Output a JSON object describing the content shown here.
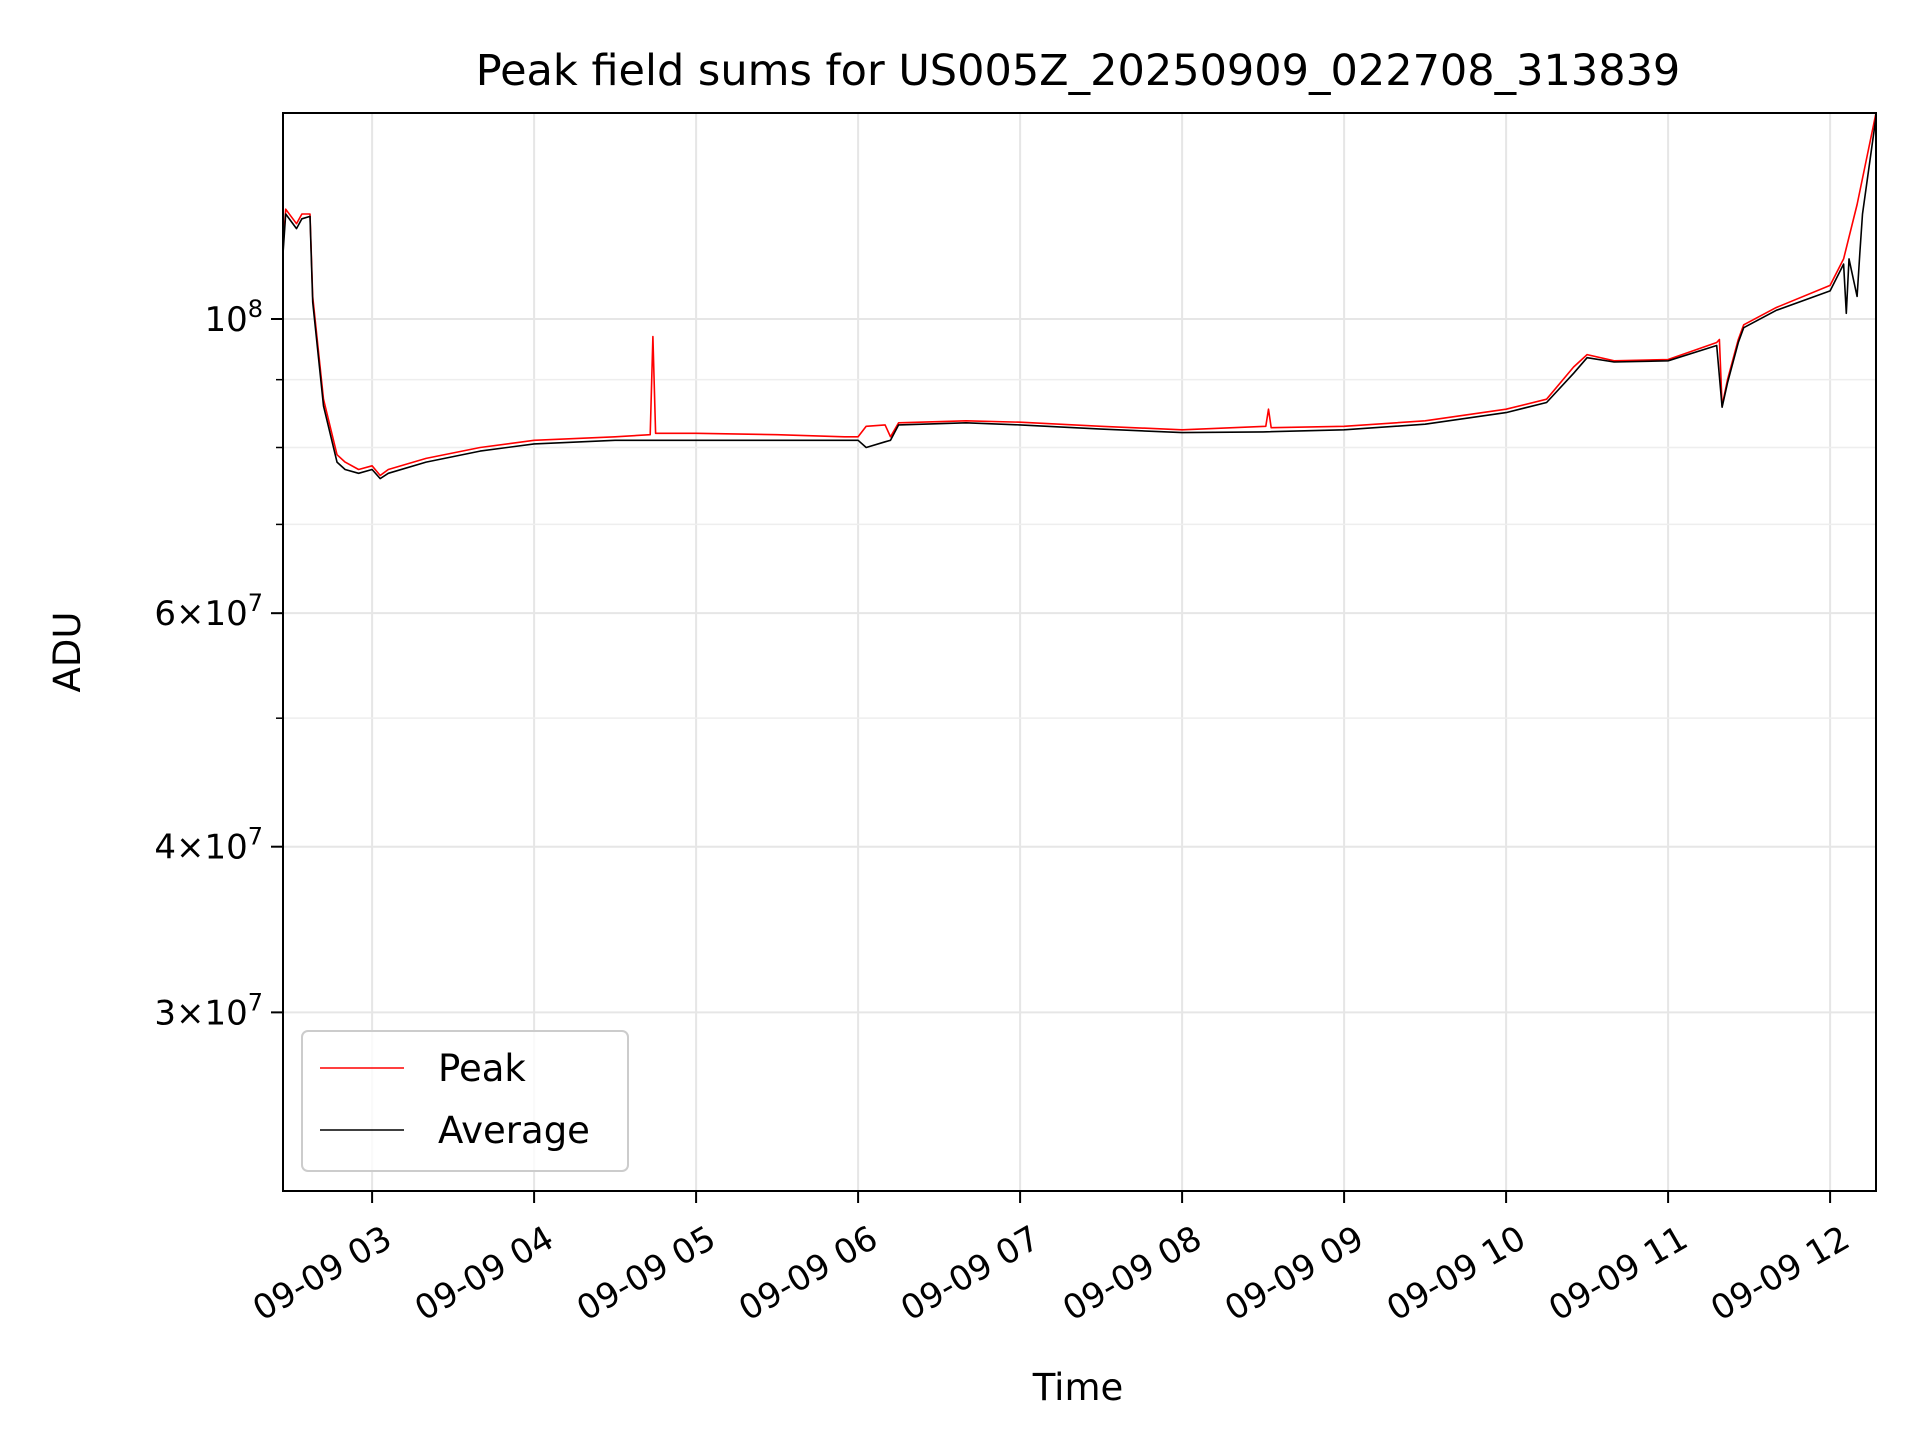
{
  "chart_data": {
    "type": "line",
    "title": "Peak field sums for US005Z_20250909_022708_313839",
    "xlabel": "Time",
    "ylabel": "ADU",
    "y_scale": "log",
    "grid": true,
    "legend_position": "lower-left",
    "xlim": [
      "2025-09-09 02:27",
      "2025-09-09 12:17"
    ],
    "ylim": [
      22000000,
      143000000
    ],
    "x_ticks": [
      {
        "time": "2025-09-09 03:00",
        "label": "09-09 03"
      },
      {
        "time": "2025-09-09 04:00",
        "label": "09-09 04"
      },
      {
        "time": "2025-09-09 05:00",
        "label": "09-09 05"
      },
      {
        "time": "2025-09-09 06:00",
        "label": "09-09 06"
      },
      {
        "time": "2025-09-09 07:00",
        "label": "09-09 07"
      },
      {
        "time": "2025-09-09 08:00",
        "label": "09-09 08"
      },
      {
        "time": "2025-09-09 09:00",
        "label": "09-09 09"
      },
      {
        "time": "2025-09-09 10:00",
        "label": "09-09 10"
      },
      {
        "time": "2025-09-09 11:00",
        "label": "09-09 11"
      },
      {
        "time": "2025-09-09 12:00",
        "label": "09-09 12"
      }
    ],
    "y_major_ticks": [
      {
        "value": 30000000,
        "mantissa": "3",
        "exponent": "7"
      },
      {
        "value": 40000000,
        "mantissa": "4",
        "exponent": "7"
      },
      {
        "value": 60000000,
        "mantissa": "6",
        "exponent": "7"
      },
      {
        "value": 100000000,
        "mantissa": "",
        "exponent": "8"
      }
    ],
    "y_minor_ticks": [
      50000000,
      70000000,
      80000000,
      90000000
    ],
    "tick_base": "10",
    "times_sign": "×",
    "series": [
      {
        "name": "Peak",
        "color": "#ff0000",
        "x": [
          "2025-09-09 02:27",
          "2025-09-09 02:28",
          "2025-09-09 02:32",
          "2025-09-09 02:34",
          "2025-09-09 02:37",
          "2025-09-09 02:38",
          "2025-09-09 02:42",
          "2025-09-09 02:47",
          "2025-09-09 02:50",
          "2025-09-09 02:55",
          "2025-09-09 03:00",
          "2025-09-09 03:03",
          "2025-09-09 03:06",
          "2025-09-09 03:20",
          "2025-09-09 03:40",
          "2025-09-09 04:00",
          "2025-09-09 04:30",
          "2025-09-09 04:43",
          "2025-09-09 04:44",
          "2025-09-09 04:45",
          "2025-09-09 05:00",
          "2025-09-09 05:30",
          "2025-09-09 05:55",
          "2025-09-09 06:00",
          "2025-09-09 06:03",
          "2025-09-09 06:10",
          "2025-09-09 06:12",
          "2025-09-09 06:15",
          "2025-09-09 06:40",
          "2025-09-09 07:00",
          "2025-09-09 07:30",
          "2025-09-09 08:00",
          "2025-09-09 08:31",
          "2025-09-09 08:32",
          "2025-09-09 08:33",
          "2025-09-09 09:00",
          "2025-09-09 09:30",
          "2025-09-09 10:00",
          "2025-09-09 10:15",
          "2025-09-09 10:25",
          "2025-09-09 10:30",
          "2025-09-09 10:40",
          "2025-09-09 11:00",
          "2025-09-09 11:18",
          "2025-09-09 11:19",
          "2025-09-09 11:20",
          "2025-09-09 11:22",
          "2025-09-09 11:26",
          "2025-09-09 11:28",
          "2025-09-09 11:40",
          "2025-09-09 12:00",
          "2025-09-09 12:05",
          "2025-09-09 12:10",
          "2025-09-09 12:17"
        ],
        "values": [
          113000000,
          121000000,
          118000000,
          120000000,
          120000000,
          104000000,
          87000000,
          79000000,
          78000000,
          77000000,
          77500000,
          76200000,
          77000000,
          78500000,
          80000000,
          81000000,
          81500000,
          81800000,
          97000000,
          82000000,
          82000000,
          81800000,
          81500000,
          81500000,
          83000000,
          83200000,
          81500000,
          83500000,
          83800000,
          83600000,
          83000000,
          82500000,
          83000000,
          85500000,
          82800000,
          83000000,
          83800000,
          85500000,
          87000000,
          92000000,
          94000000,
          93000000,
          93200000,
          96000000,
          96500000,
          86000000,
          90000000,
          96500000,
          99000000,
          102000000,
          106000000,
          111000000,
          122000000,
          143000000
        ]
      },
      {
        "name": "Average",
        "color": "#000000",
        "x": [
          "2025-09-09 02:27",
          "2025-09-09 02:28",
          "2025-09-09 02:32",
          "2025-09-09 02:34",
          "2025-09-09 02:37",
          "2025-09-09 02:38",
          "2025-09-09 02:42",
          "2025-09-09 02:47",
          "2025-09-09 02:50",
          "2025-09-09 02:55",
          "2025-09-09 03:00",
          "2025-09-09 03:03",
          "2025-09-09 03:06",
          "2025-09-09 03:20",
          "2025-09-09 03:40",
          "2025-09-09 04:00",
          "2025-09-09 04:30",
          "2025-09-09 05:00",
          "2025-09-09 05:30",
          "2025-09-09 05:55",
          "2025-09-09 06:00",
          "2025-09-09 06:03",
          "2025-09-09 06:10",
          "2025-09-09 06:12",
          "2025-09-09 06:15",
          "2025-09-09 06:40",
          "2025-09-09 07:00",
          "2025-09-09 07:30",
          "2025-09-09 08:00",
          "2025-09-09 08:30",
          "2025-09-09 09:00",
          "2025-09-09 09:30",
          "2025-09-09 10:00",
          "2025-09-09 10:15",
          "2025-09-09 10:25",
          "2025-09-09 10:30",
          "2025-09-09 10:40",
          "2025-09-09 11:00",
          "2025-09-09 11:18",
          "2025-09-09 11:20",
          "2025-09-09 11:22",
          "2025-09-09 11:26",
          "2025-09-09 11:28",
          "2025-09-09 11:40",
          "2025-09-09 12:00",
          "2025-09-09 12:05",
          "2025-09-09 12:06",
          "2025-09-09 12:07",
          "2025-09-09 12:10",
          "2025-09-09 12:11",
          "2025-09-09 12:12",
          "2025-09-09 12:17"
        ],
        "values": [
          112000000,
          120000000,
          117000000,
          119000000,
          119500000,
          103000000,
          86000000,
          78000000,
          77000000,
          76500000,
          77000000,
          75800000,
          76500000,
          78000000,
          79500000,
          80500000,
          81000000,
          81000000,
          81000000,
          81000000,
          81000000,
          80000000,
          80800000,
          81000000,
          83200000,
          83500000,
          83200000,
          82600000,
          82100000,
          82200000,
          82500000,
          83300000,
          85000000,
          86500000,
          91000000,
          93500000,
          92800000,
          93000000,
          95500000,
          85800000,
          89500000,
          96000000,
          98500000,
          101500000,
          105000000,
          110000000,
          101000000,
          111000000,
          104000000,
          112000000,
          120000000,
          142000000
        ]
      }
    ]
  }
}
